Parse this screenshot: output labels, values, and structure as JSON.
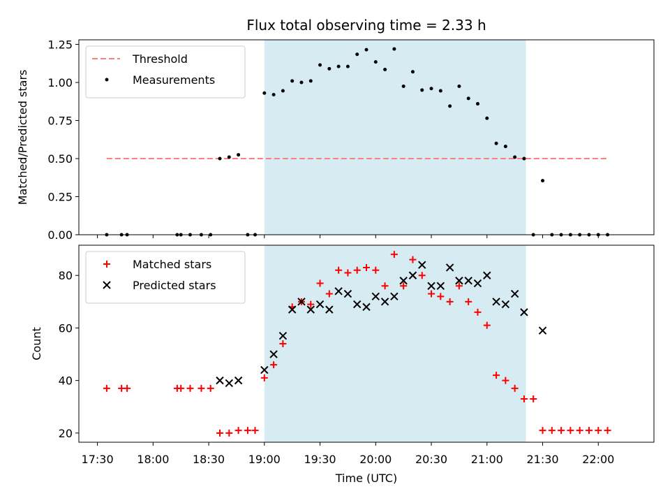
{
  "chart_data": {
    "type": "scatter",
    "title": "Flux total observing time = 2.33 h",
    "xlabel": "Time (UTC)",
    "x_ticks": [
      "17:30",
      "18:00",
      "18:30",
      "19:00",
      "19:30",
      "20:00",
      "20:30",
      "21:00",
      "21:30",
      "22:00"
    ],
    "x_range": [
      "17:20",
      "22:30"
    ],
    "shaded_interval": {
      "start": "19:00",
      "end": "21:21",
      "color": "#add8e6"
    },
    "panels": [
      {
        "ylabel": "Matched/Predicted stars",
        "ylim": [
          0,
          1.28
        ],
        "y_ticks": [
          "0.00",
          "0.25",
          "0.50",
          "0.75",
          "1.00",
          "1.25"
        ],
        "legend_position": "top-left",
        "threshold": {
          "name": "Threshold",
          "value": 0.5,
          "x_start": "17:35",
          "x_end": "22:05",
          "color": "#ff7f7f"
        },
        "series": [
          {
            "name": "Measurements",
            "color": "#000000",
            "points": [
              [
                "17:35",
                0
              ],
              [
                "17:43",
                0
              ],
              [
                "17:46",
                0
              ],
              [
                "18:13",
                0
              ],
              [
                "18:15",
                0
              ],
              [
                "18:20",
                0
              ],
              [
                "18:26",
                0
              ],
              [
                "18:31",
                0
              ],
              [
                "18:36",
                0.5
              ],
              [
                "18:41",
                0.51
              ],
              [
                "18:46",
                0.525
              ],
              [
                "18:51",
                0
              ],
              [
                "18:55",
                0
              ],
              [
                "19:00",
                0.93
              ],
              [
                "19:05",
                0.92
              ],
              [
                "19:10",
                0.945
              ],
              [
                "19:15",
                1.01
              ],
              [
                "19:20",
                1.0
              ],
              [
                "19:25",
                1.01
              ],
              [
                "19:30",
                1.115
              ],
              [
                "19:35",
                1.09
              ],
              [
                "19:40",
                1.105
              ],
              [
                "19:45",
                1.105
              ],
              [
                "19:50",
                1.185
              ],
              [
                "19:55",
                1.215
              ],
              [
                "20:00",
                1.135
              ],
              [
                "20:05",
                1.085
              ],
              [
                "20:10",
                1.22
              ],
              [
                "20:15",
                0.975
              ],
              [
                "20:20",
                1.07
              ],
              [
                "20:25",
                0.95
              ],
              [
                "20:30",
                0.96
              ],
              [
                "20:35",
                0.945
              ],
              [
                "20:40",
                0.845
              ],
              [
                "20:45",
                0.975
              ],
              [
                "20:50",
                0.895
              ],
              [
                "20:55",
                0.86
              ],
              [
                "21:00",
                0.765
              ],
              [
                "21:05",
                0.6
              ],
              [
                "21:10",
                0.58
              ],
              [
                "21:15",
                0.51
              ],
              [
                "21:20",
                0.5
              ],
              [
                "21:25",
                0
              ],
              [
                "21:30",
                0.355
              ],
              [
                "21:35",
                0
              ],
              [
                "21:40",
                0
              ],
              [
                "21:45",
                0
              ],
              [
                "21:50",
                0
              ],
              [
                "21:55",
                0
              ],
              [
                "22:00",
                0
              ],
              [
                "22:05",
                0
              ]
            ]
          }
        ]
      },
      {
        "ylabel": "Count",
        "ylim": [
          16.5,
          91.5
        ],
        "y_ticks": [
          "20",
          "40",
          "60",
          "80"
        ],
        "legend_position": "top-left",
        "series": [
          {
            "name": "Matched stars",
            "marker": "plus",
            "color": "#ff0000",
            "points": [
              [
                "17:35",
                37
              ],
              [
                "17:43",
                37
              ],
              [
                "17:46",
                37
              ],
              [
                "18:13",
                37
              ],
              [
                "18:15",
                37
              ],
              [
                "18:20",
                37
              ],
              [
                "18:26",
                37
              ],
              [
                "18:31",
                37
              ],
              [
                "18:36",
                20
              ],
              [
                "18:41",
                20
              ],
              [
                "18:46",
                21
              ],
              [
                "18:51",
                21
              ],
              [
                "18:55",
                21
              ],
              [
                "19:00",
                41
              ],
              [
                "19:05",
                46
              ],
              [
                "19:10",
                54
              ],
              [
                "19:15",
                68
              ],
              [
                "19:20",
                70
              ],
              [
                "19:25",
                69
              ],
              [
                "19:30",
                77
              ],
              [
                "19:35",
                73
              ],
              [
                "19:40",
                82
              ],
              [
                "19:45",
                81
              ],
              [
                "19:50",
                82
              ],
              [
                "19:55",
                83
              ],
              [
                "20:00",
                82
              ],
              [
                "20:05",
                76
              ],
              [
                "20:10",
                88
              ],
              [
                "20:15",
                76
              ],
              [
                "20:20",
                86
              ],
              [
                "20:25",
                80
              ],
              [
                "20:30",
                73
              ],
              [
                "20:35",
                72
              ],
              [
                "20:40",
                70
              ],
              [
                "20:45",
                76
              ],
              [
                "20:50",
                70
              ],
              [
                "20:55",
                66
              ],
              [
                "21:00",
                61
              ],
              [
                "21:05",
                42
              ],
              [
                "21:10",
                40
              ],
              [
                "21:15",
                37
              ],
              [
                "21:20",
                33
              ],
              [
                "21:25",
                33
              ],
              [
                "21:30",
                21
              ],
              [
                "21:35",
                21
              ],
              [
                "21:40",
                21
              ],
              [
                "21:45",
                21
              ],
              [
                "21:50",
                21
              ],
              [
                "21:55",
                21
              ],
              [
                "22:00",
                21
              ],
              [
                "22:05",
                21
              ]
            ]
          },
          {
            "name": "Predicted stars",
            "marker": "x",
            "color": "#000000",
            "points": [
              [
                "18:36",
                40
              ],
              [
                "18:41",
                39
              ],
              [
                "18:46",
                40
              ],
              [
                "19:00",
                44
              ],
              [
                "19:05",
                50
              ],
              [
                "19:10",
                57
              ],
              [
                "19:15",
                67
              ],
              [
                "19:20",
                70
              ],
              [
                "19:25",
                67
              ],
              [
                "19:30",
                69
              ],
              [
                "19:35",
                67
              ],
              [
                "19:40",
                74
              ],
              [
                "19:45",
                73
              ],
              [
                "19:50",
                69
              ],
              [
                "19:55",
                68
              ],
              [
                "20:00",
                72
              ],
              [
                "20:05",
                70
              ],
              [
                "20:10",
                72
              ],
              [
                "20:15",
                78
              ],
              [
                "20:20",
                80
              ],
              [
                "20:25",
                84
              ],
              [
                "20:30",
                76
              ],
              [
                "20:35",
                76
              ],
              [
                "20:40",
                83
              ],
              [
                "20:45",
                78
              ],
              [
                "20:50",
                78
              ],
              [
                "20:55",
                77
              ],
              [
                "21:00",
                80
              ],
              [
                "21:05",
                70
              ],
              [
                "21:10",
                69
              ],
              [
                "21:15",
                73
              ],
              [
                "21:20",
                66
              ],
              [
                "21:30",
                59
              ]
            ]
          }
        ]
      }
    ]
  }
}
